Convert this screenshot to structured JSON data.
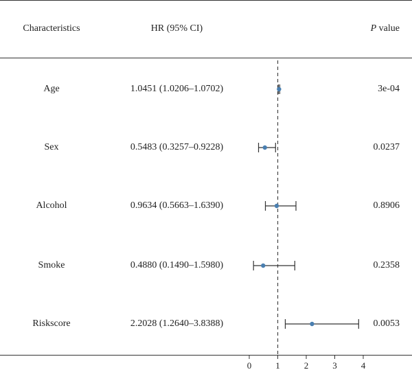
{
  "chart_data": {
    "type": "forest",
    "headers": {
      "characteristics": "Characteristics",
      "hr": "HR (95% CI)",
      "p_italic": "P",
      "p_rest": " value"
    },
    "rows": [
      {
        "name": "Age",
        "hr_text": "1.0451 (1.0206–1.0702)",
        "hr": 1.0451,
        "lo": 1.0206,
        "hi": 1.0702,
        "p": "3e-04"
      },
      {
        "name": "Sex",
        "hr_text": "0.5483 (0.3257–0.9228)",
        "hr": 0.5483,
        "lo": 0.3257,
        "hi": 0.9228,
        "p": "0.0237"
      },
      {
        "name": "Alcohol",
        "hr_text": "0.9634 (0.5663–1.6390)",
        "hr": 0.9634,
        "lo": 0.5663,
        "hi": 1.639,
        "p": "0.8906"
      },
      {
        "name": "Smoke",
        "hr_text": "0.4880 (0.1490–1.5980)",
        "hr": 0.488,
        "lo": 0.149,
        "hi": 1.598,
        "p": "0.2358"
      },
      {
        "name": "Riskscore",
        "hr_text": "2.2028 (1.2640–3.8388)",
        "hr": 2.2028,
        "lo": 1.264,
        "hi": 3.8388,
        "p": "0.0053"
      }
    ],
    "xticks": [
      0,
      1,
      2,
      3,
      4
    ],
    "xlim": [
      0,
      4
    ],
    "reference_line": 1,
    "point_color": "#4a7fb0"
  }
}
